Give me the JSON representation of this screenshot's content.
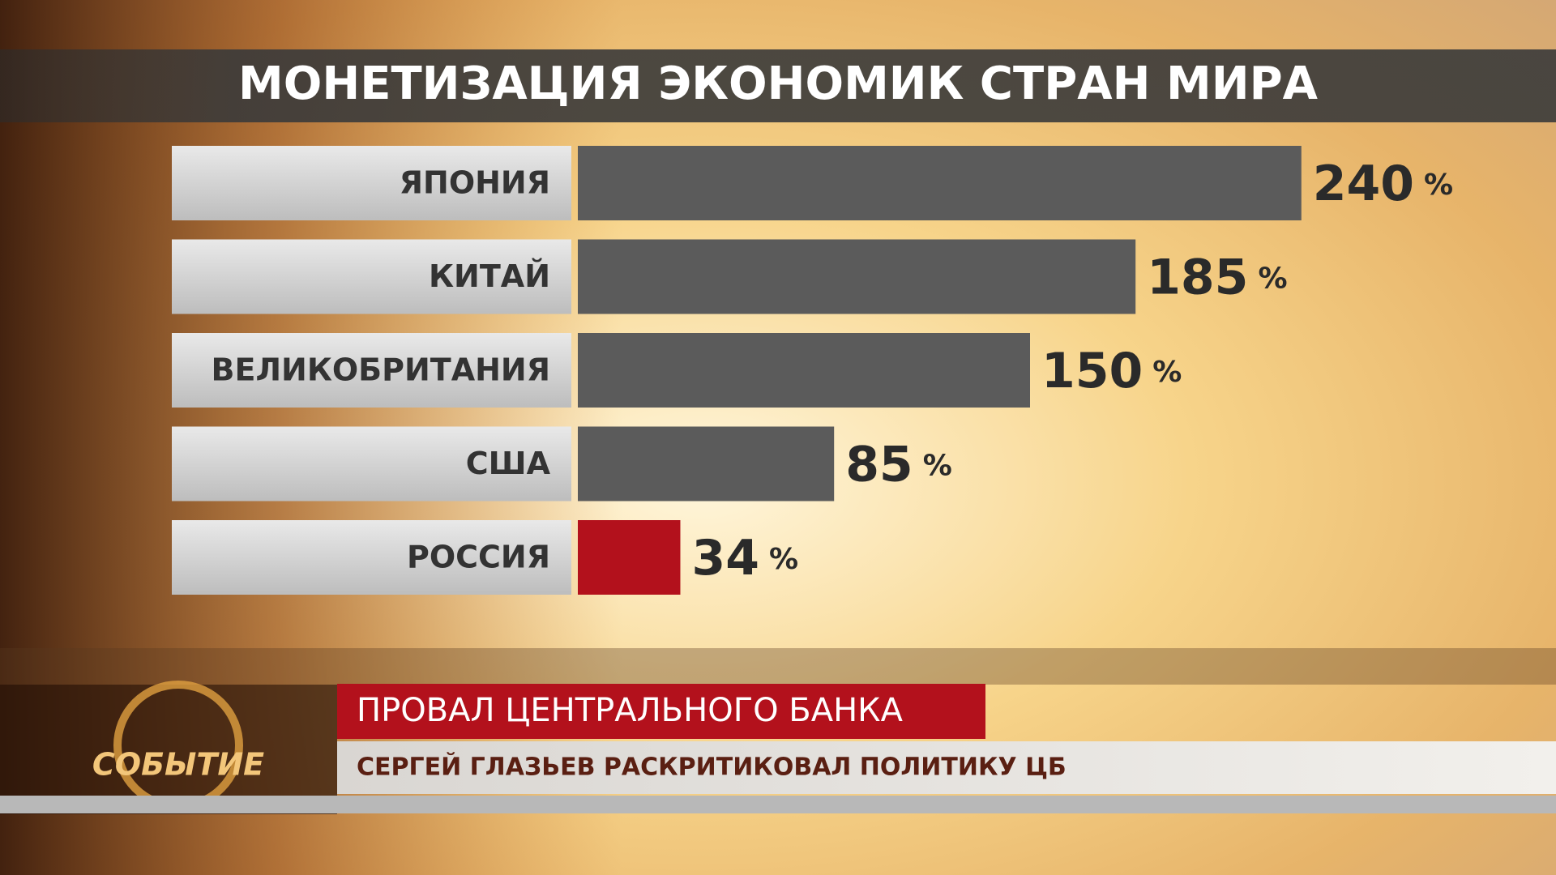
{
  "chart_data": {
    "type": "bar",
    "orientation": "horizontal",
    "title": "МОНЕТИЗАЦИЯ ЭКОНОМИК СТРАН МИРА",
    "categories": [
      "ЯПОНИЯ",
      "КИТАЙ",
      "ВЕЛИКОБРИТАНИЯ",
      "США",
      "РОССИЯ"
    ],
    "values": [
      240,
      185,
      150,
      85,
      34
    ],
    "colors": [
      "#5b5b5b",
      "#5b5b5b",
      "#5b5b5b",
      "#5b5b5b",
      "#b3111c"
    ],
    "unit": "%"
  },
  "lower_third": {
    "headline": "ПРОВАЛ ЦЕНТРАЛЬНОГО БАНКА",
    "subline": "СЕРГЕЙ ГЛАЗЬЕВ РАСКРИТИКОВАЛ ПОЛИТИКУ ЦБ"
  },
  "logo": "СОБЫТИЕ"
}
